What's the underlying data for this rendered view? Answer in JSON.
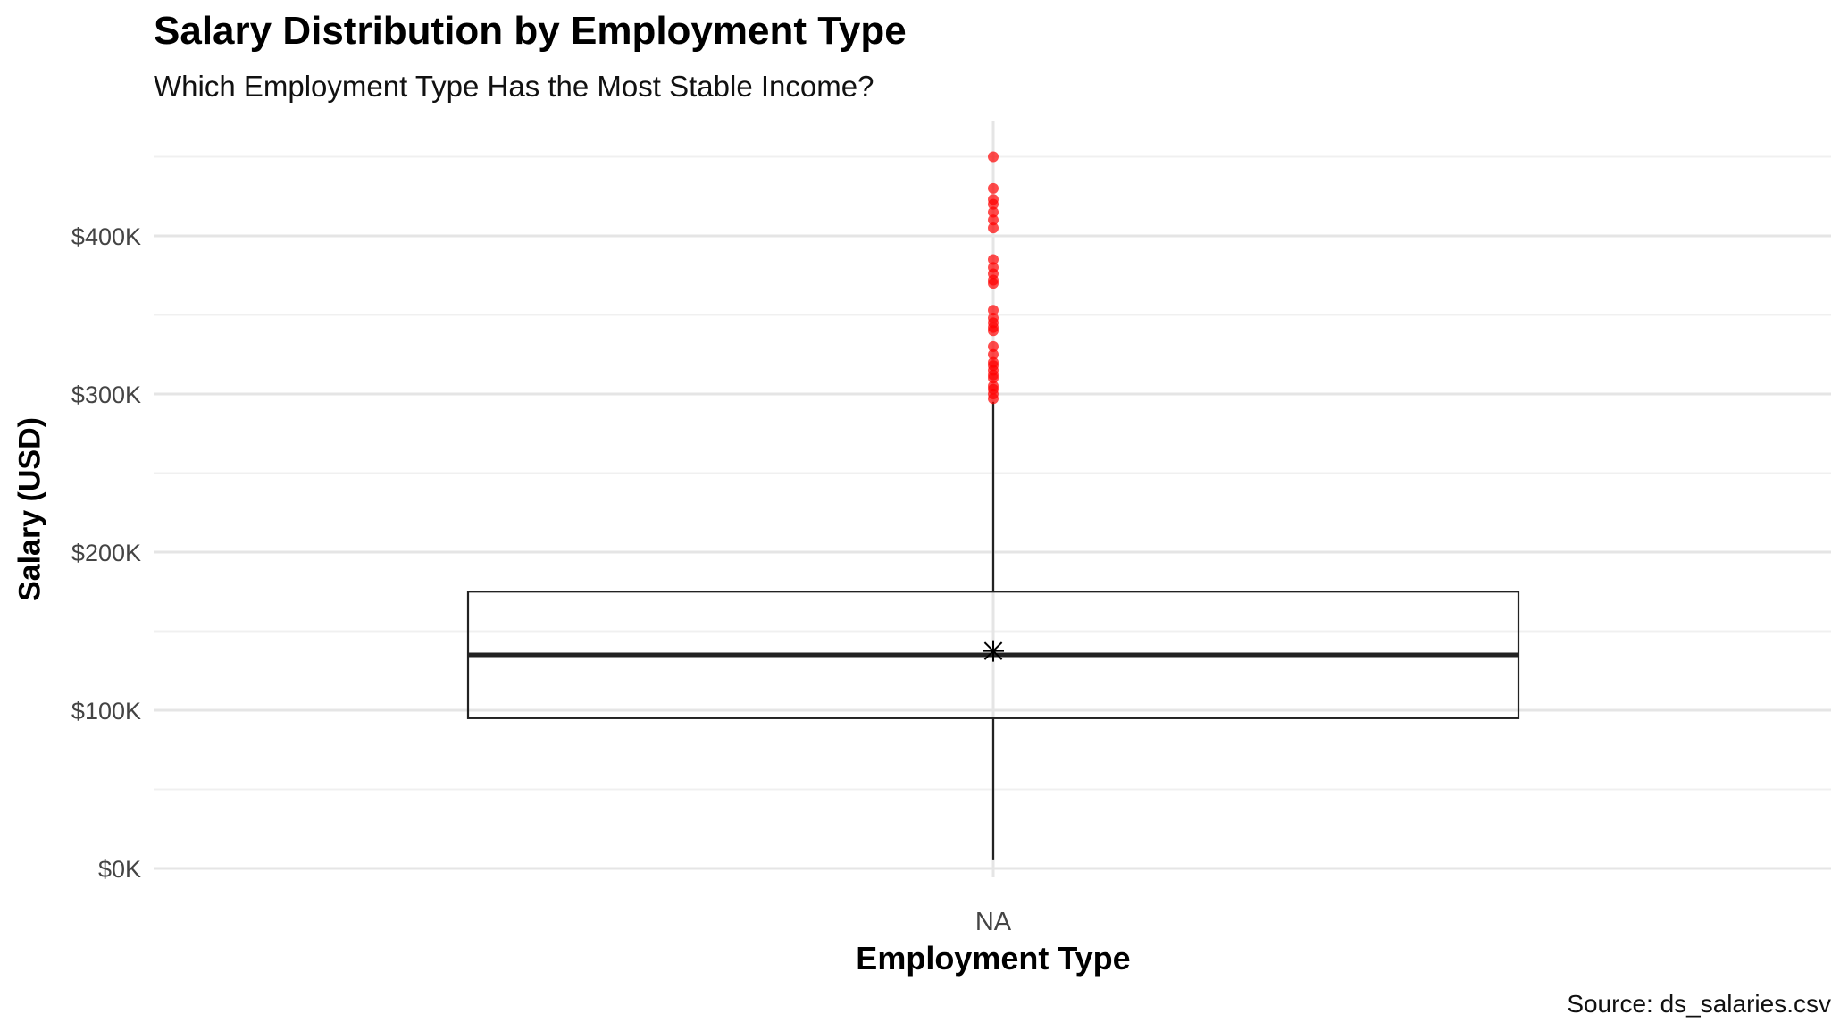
{
  "chart_data": {
    "type": "box",
    "title": "Salary Distribution by Employment Type",
    "subtitle": "Which Employment Type Has the Most Stable Income?",
    "xlabel": "Employment Type",
    "ylabel": "Salary (USD)",
    "caption": "Source: ds_salaries.csv",
    "categories": [
      "NA"
    ],
    "ylim": [
      -5000,
      455000
    ],
    "yticks": [
      0,
      100000,
      200000,
      300000,
      400000
    ],
    "ytick_labels": [
      "$0K",
      "$100K",
      "$200K",
      "$300K",
      "$400K"
    ],
    "grid": true,
    "box": {
      "category": "NA",
      "min": 5132,
      "q1": 95000,
      "median": 135000,
      "q3": 175000,
      "whisker_high": 295000,
      "mean": 137500
    },
    "outliers": [
      297000,
      300000,
      303000,
      305000,
      310000,
      312000,
      315000,
      318000,
      320000,
      325000,
      330000,
      340000,
      342000,
      345000,
      348000,
      353000,
      370000,
      372000,
      376000,
      380000,
      385000,
      405000,
      410000,
      415000,
      420000,
      423000,
      430000,
      450000
    ],
    "colors": {
      "outlier": "#ff0000",
      "box_stroke": "#222222",
      "grid_major": "#e5e5e5",
      "grid_minor": "#f0f0f0"
    }
  }
}
